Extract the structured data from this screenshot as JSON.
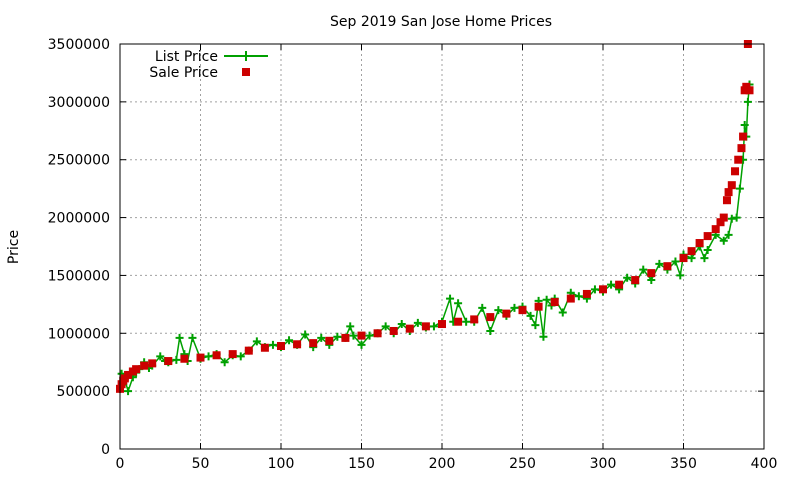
{
  "chart_data": {
    "type": "line",
    "title": "Sep 2019 San Jose Home Prices",
    "xlabel": "",
    "ylabel": "Price",
    "xlim": [
      0,
      400
    ],
    "ylim": [
      0,
      3500000
    ],
    "x_ticks": [
      "0",
      "50",
      "100",
      "150",
      "200",
      "250",
      "300",
      "350",
      "400"
    ],
    "y_ticks": [
      "0",
      "500000",
      "1000000",
      "1500000",
      "2000000",
      "2500000",
      "3000000",
      "3500000"
    ],
    "grid": true,
    "legend_position": "top-left",
    "series": [
      {
        "name": "List Price",
        "color": "#00a000",
        "style": "line-with-plus-points",
        "x": [
          0,
          1,
          2,
          3,
          5,
          8,
          10,
          12,
          15,
          18,
          20,
          25,
          28,
          30,
          35,
          37,
          40,
          42,
          45,
          50,
          55,
          60,
          65,
          70,
          75,
          80,
          85,
          90,
          95,
          100,
          105,
          110,
          115,
          120,
          125,
          130,
          135,
          140,
          143,
          145,
          150,
          155,
          160,
          165,
          170,
          175,
          180,
          185,
          190,
          195,
          200,
          205,
          207,
          210,
          215,
          220,
          225,
          230,
          235,
          240,
          245,
          250,
          255,
          258,
          260,
          263,
          265,
          268,
          270,
          275,
          280,
          285,
          290,
          295,
          300,
          305,
          310,
          315,
          320,
          325,
          330,
          335,
          340,
          345,
          348,
          350,
          355,
          360,
          363,
          365,
          370,
          375,
          378,
          380,
          383,
          385,
          387,
          388,
          389,
          390,
          391
        ],
        "y": [
          520000,
          650000,
          560000,
          600000,
          500000,
          620000,
          660000,
          690000,
          750000,
          700000,
          720000,
          800000,
          760000,
          750000,
          770000,
          960000,
          820000,
          760000,
          960000,
          780000,
          800000,
          820000,
          750000,
          810000,
          800000,
          850000,
          930000,
          880000,
          900000,
          880000,
          940000,
          900000,
          990000,
          880000,
          960000,
          900000,
          970000,
          960000,
          1060000,
          980000,
          900000,
          980000,
          1000000,
          1060000,
          1000000,
          1080000,
          1020000,
          1090000,
          1050000,
          1060000,
          1100000,
          1300000,
          1100000,
          1260000,
          1100000,
          1100000,
          1220000,
          1020000,
          1200000,
          1150000,
          1220000,
          1230000,
          1150000,
          1070000,
          1280000,
          970000,
          1290000,
          1240000,
          1300000,
          1180000,
          1350000,
          1320000,
          1300000,
          1380000,
          1360000,
          1420000,
          1380000,
          1480000,
          1430000,
          1550000,
          1460000,
          1600000,
          1550000,
          1620000,
          1500000,
          1680000,
          1650000,
          1750000,
          1650000,
          1720000,
          1850000,
          1800000,
          1850000,
          1990000,
          2000000,
          2250000,
          2500000,
          2800000,
          2700000,
          3000000,
          3150000
        ]
      },
      {
        "name": "Sale Price",
        "color": "#cc0000",
        "style": "square-points",
        "x": [
          0,
          1,
          2,
          3,
          5,
          8,
          10,
          15,
          20,
          30,
          40,
          50,
          60,
          70,
          80,
          90,
          100,
          110,
          120,
          130,
          140,
          150,
          160,
          170,
          180,
          190,
          200,
          210,
          220,
          230,
          240,
          250,
          260,
          270,
          280,
          290,
          300,
          310,
          320,
          330,
          340,
          350,
          355,
          360,
          365,
          370,
          373,
          375,
          377,
          378,
          380,
          382,
          384,
          386,
          387,
          388,
          389,
          390,
          391
        ],
        "y": [
          520000,
          560000,
          590000,
          610000,
          640000,
          670000,
          690000,
          720000,
          740000,
          760000,
          780000,
          790000,
          810000,
          820000,
          850000,
          875000,
          890000,
          905000,
          915000,
          935000,
          960000,
          980000,
          1000000,
          1020000,
          1040000,
          1060000,
          1080000,
          1100000,
          1120000,
          1140000,
          1170000,
          1200000,
          1230000,
          1270000,
          1300000,
          1340000,
          1380000,
          1420000,
          1460000,
          1520000,
          1580000,
          1650000,
          1710000,
          1780000,
          1840000,
          1900000,
          1960000,
          2000000,
          2150000,
          2220000,
          2280000,
          2400000,
          2500000,
          2600000,
          2700000,
          3100000,
          3130000,
          3500000,
          3100000
        ]
      }
    ]
  }
}
